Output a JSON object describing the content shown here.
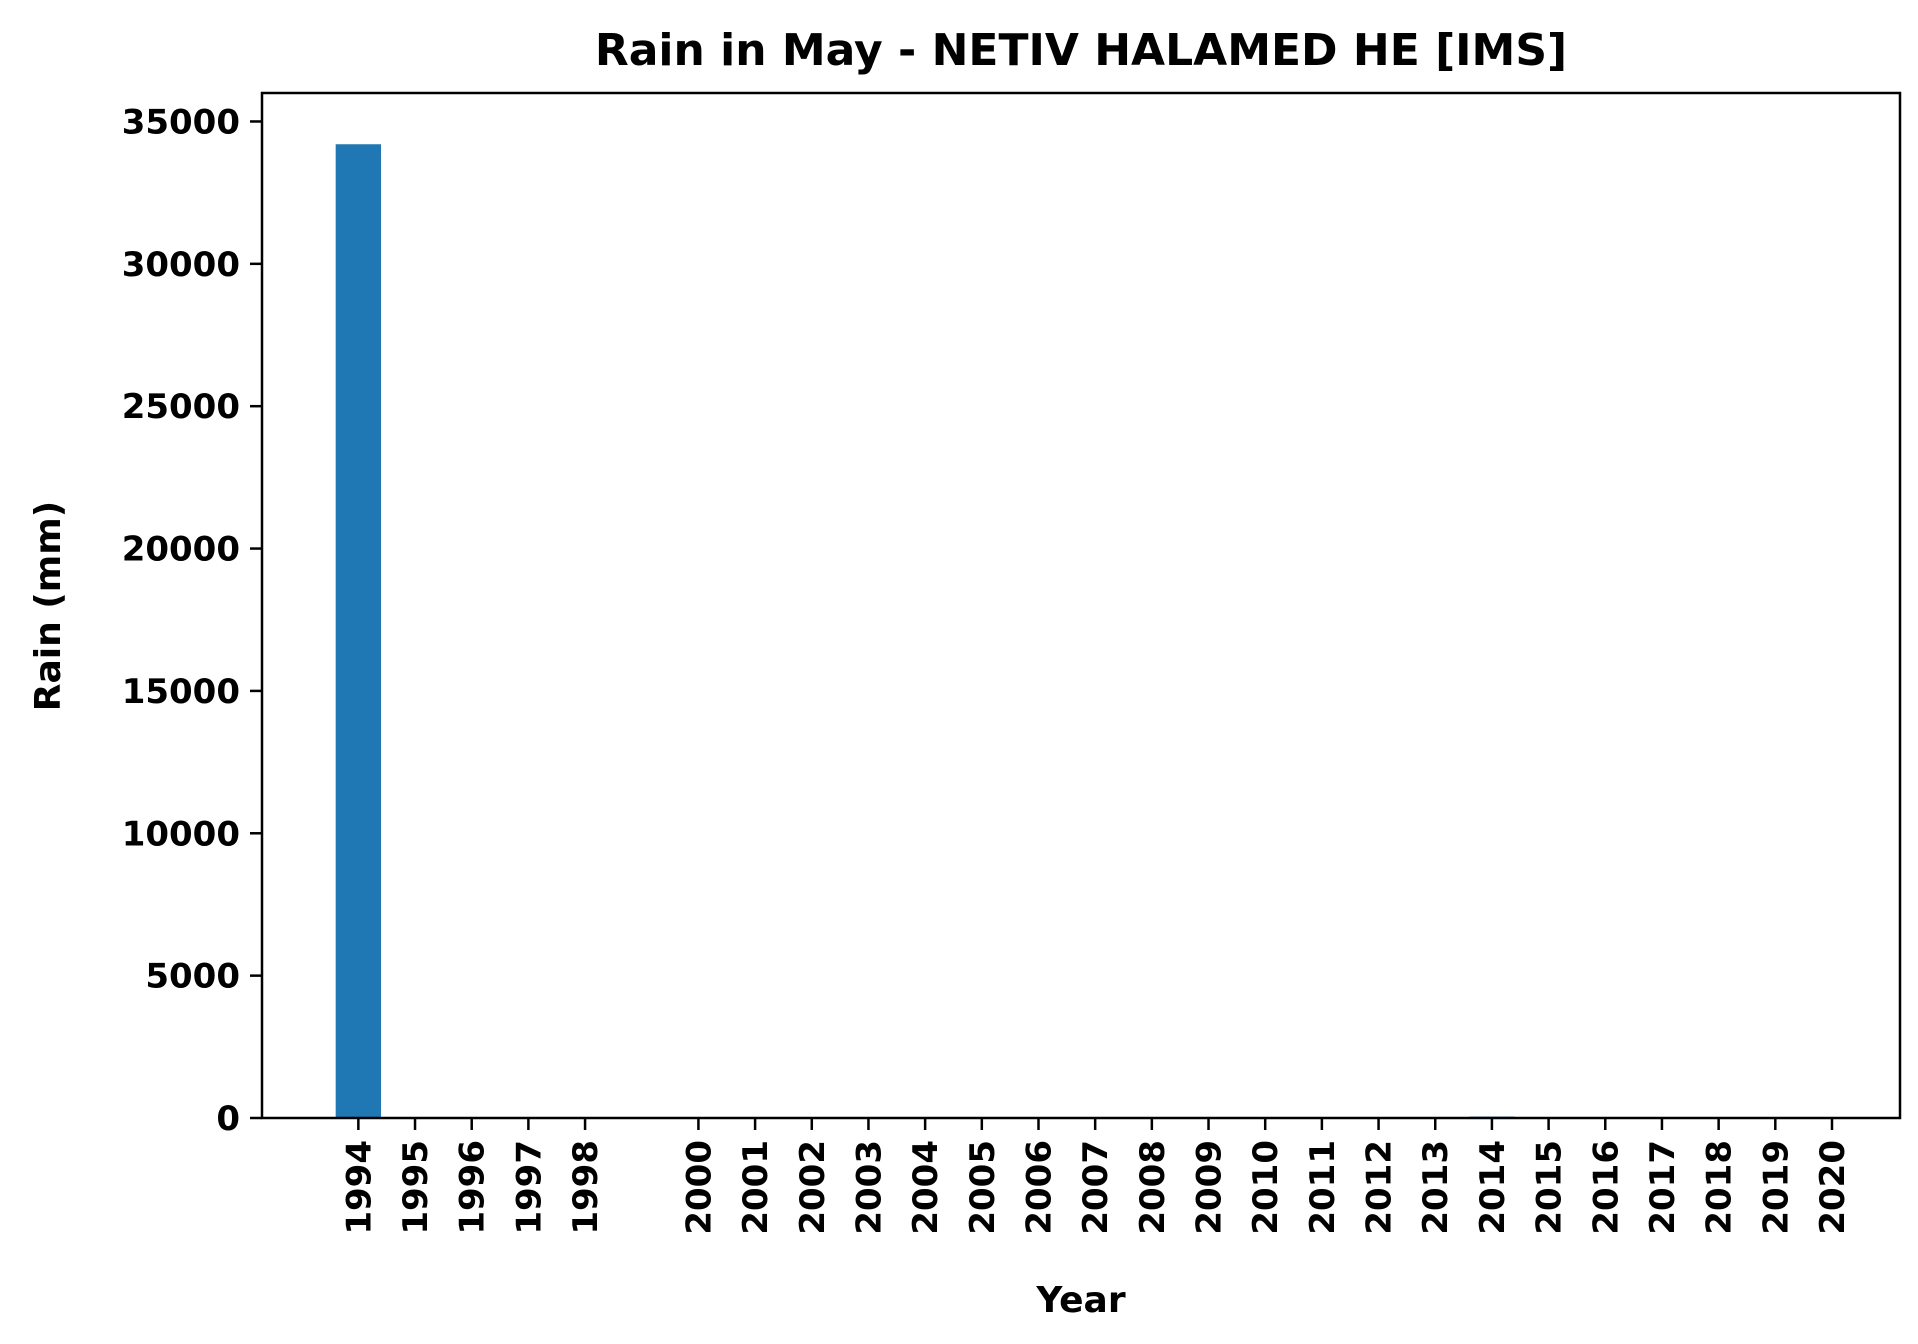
{
  "chart_data": {
    "type": "bar",
    "title": "Rain in May - NETIV HALAMED HE [IMS]",
    "xlabel": "Year",
    "ylabel": "Rain (mm)",
    "ylim": [
      0,
      36000
    ],
    "yticks": [
      0,
      5000,
      10000,
      15000,
      20000,
      25000,
      30000,
      35000
    ],
    "categories": [
      "1994",
      "1995",
      "1996",
      "1997",
      "1998",
      "2000",
      "2001",
      "2002",
      "2003",
      "2004",
      "2005",
      "2006",
      "2007",
      "2008",
      "2009",
      "2010",
      "2011",
      "2012",
      "2013",
      "2014",
      "2015",
      "2016",
      "2017",
      "2018",
      "2019",
      "2020"
    ],
    "x": [
      1994,
      1995,
      1996,
      1997,
      1998,
      2000,
      2001,
      2002,
      2003,
      2004,
      2005,
      2006,
      2007,
      2008,
      2009,
      2010,
      2011,
      2012,
      2013,
      2014,
      2015,
      2016,
      2017,
      2018,
      2019,
      2020
    ],
    "values": [
      34200,
      0,
      0,
      0,
      0,
      0,
      0,
      0,
      0,
      0,
      0,
      0,
      0,
      0,
      0,
      0,
      0,
      0,
      0,
      50,
      0,
      0,
      0,
      0,
      0,
      0
    ],
    "xlim": [
      1992.3,
      2021.2
    ],
    "grid": false,
    "bar_color": "#1f77b4"
  }
}
